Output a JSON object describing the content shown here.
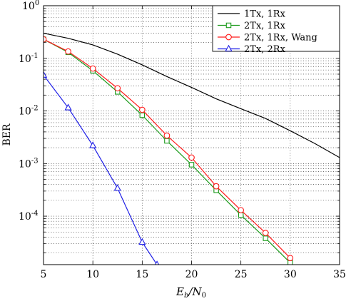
{
  "chart_data": {
    "type": "line",
    "title": "",
    "xlabel": "E_b/N_0",
    "xlabel_parts": {
      "base": "E",
      "sub1": "b",
      "slash": "/N",
      "sub2": "0"
    },
    "ylabel": "BER",
    "xlim": [
      5,
      35
    ],
    "ylim": [
      1.2e-05,
      1
    ],
    "y_scale": "log",
    "x_ticks": [
      "5",
      "10",
      "15",
      "20",
      "25",
      "30",
      "35"
    ],
    "y_ticks": [
      {
        "value": 1,
        "exp": "0"
      },
      {
        "value": 0.1,
        "exp": "-1"
      },
      {
        "value": 0.01,
        "exp": "-2"
      },
      {
        "value": 0.001,
        "exp": "-3"
      },
      {
        "value": 0.0001,
        "exp": "-4"
      }
    ],
    "tick_base": "10",
    "grid": true,
    "legend_position": "top-right",
    "series": [
      {
        "name": "1Tx, 1Rx",
        "color": "#000000",
        "marker": "none",
        "x": [
          5,
          7.5,
          10,
          12.5,
          15,
          17.5,
          20,
          22.5,
          25,
          27.5,
          30,
          32.5,
          35
        ],
        "y": [
          0.3,
          0.24,
          0.18,
          0.12,
          0.075,
          0.045,
          0.028,
          0.017,
          0.011,
          0.0072,
          0.0042,
          0.0024,
          0.0013
        ]
      },
      {
        "name": "2Tx, 1Rx",
        "color": "#1a9a1a",
        "marker": "square",
        "x": [
          5,
          7.5,
          10,
          12.5,
          15,
          17.5,
          20,
          22.5,
          25,
          27.5,
          30
        ],
        "y": [
          0.23,
          0.13,
          0.058,
          0.023,
          0.0083,
          0.0027,
          0.00095,
          0.00031,
          0.000105,
          3.8e-05,
          1.3e-05
        ]
      },
      {
        "name": "2Tx, 1Rx, Wang",
        "color": "#ff1a1a",
        "marker": "circle",
        "x": [
          5,
          7.5,
          10,
          12.5,
          15,
          17.5,
          20,
          22.5,
          25,
          27.5,
          30
        ],
        "y": [
          0.23,
          0.135,
          0.064,
          0.027,
          0.0105,
          0.0034,
          0.0013,
          0.00037,
          0.00013,
          4.8e-05,
          1.6e-05
        ]
      },
      {
        "name": "2Tx, 2Rx",
        "color": "#1f1fe6",
        "marker": "triangle",
        "x": [
          5,
          7.5,
          10,
          12.5,
          15,
          16.5
        ],
        "y": [
          0.048,
          0.0115,
          0.0022,
          0.00034,
          3.2e-05,
          1.2e-05
        ]
      }
    ]
  }
}
